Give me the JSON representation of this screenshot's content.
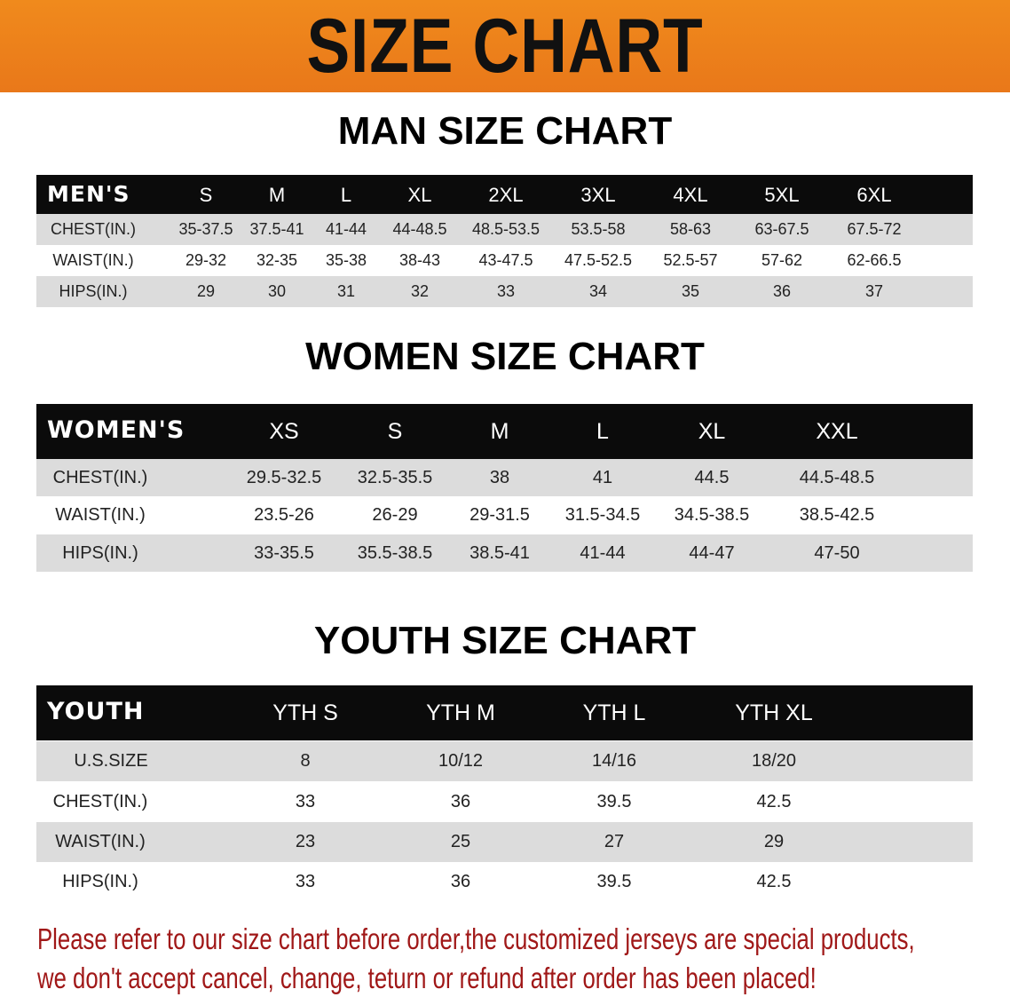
{
  "banner": {
    "title": "SIZE CHART",
    "color": "#ec7f1b"
  },
  "men": {
    "title": "MAN SIZE CHART",
    "header_label": "MEN'S",
    "sizes": [
      "S",
      "M",
      "L",
      "XL",
      "2XL",
      "3XL",
      "4XL",
      "5XL",
      "6XL"
    ],
    "rows": [
      {
        "label": "CHEST(IN.)",
        "values": [
          "35-37.5",
          "37.5-41",
          "41-44",
          "44-48.5",
          "48.5-53.5",
          "53.5-58",
          "58-63",
          "63-67.5",
          "67.5-72"
        ]
      },
      {
        "label": "WAIST(IN.)",
        "values": [
          "29-32",
          "32-35",
          "35-38",
          "38-43",
          "43-47.5",
          "47.5-52.5",
          "52.5-57",
          "57-62",
          "62-66.5"
        ]
      },
      {
        "label": "HIPS(IN.)",
        "values": [
          "29",
          "30",
          "31",
          "32",
          "33",
          "34",
          "35",
          "36",
          "37"
        ]
      }
    ]
  },
  "women": {
    "title": "WOMEN SIZE CHART",
    "header_label": "WOMEN'S",
    "sizes": [
      "XS",
      "S",
      "M",
      "L",
      "XL",
      "XXL"
    ],
    "rows": [
      {
        "label": "CHEST(IN.)",
        "values": [
          "29.5-32.5",
          "32.5-35.5",
          "38",
          "41",
          "44.5",
          "44.5-48.5"
        ]
      },
      {
        "label": "WAIST(IN.)",
        "values": [
          "23.5-26",
          "26-29",
          "29-31.5",
          "31.5-34.5",
          "34.5-38.5",
          "38.5-42.5"
        ]
      },
      {
        "label": "HIPS(IN.)",
        "values": [
          "33-35.5",
          "35.5-38.5",
          "38.5-41",
          "41-44",
          "44-47",
          "47-50"
        ]
      }
    ]
  },
  "youth": {
    "title": "YOUTH SIZE CHART",
    "header_label": "YOUTH",
    "sizes": [
      "YTH S",
      "YTH M",
      "YTH L",
      "YTH XL"
    ],
    "rows": [
      {
        "label": "U.S.SIZE",
        "values": [
          "8",
          "10/12",
          "14/16",
          "18/20"
        ]
      },
      {
        "label": "CHEST(IN.)",
        "values": [
          "33",
          "36",
          "39.5",
          "42.5"
        ]
      },
      {
        "label": "WAIST(IN.)",
        "values": [
          "23",
          "25",
          "27",
          "29"
        ]
      },
      {
        "label": "HIPS(IN.)",
        "values": [
          "33",
          "36",
          "39.5",
          "42.5"
        ]
      }
    ]
  },
  "notice": {
    "line1": "Please refer to our size chart before order,the customized jerseys are special products,",
    "line2": "we don't accept cancel, change, teturn or refund after order has been placed!",
    "color": "#a01818"
  }
}
